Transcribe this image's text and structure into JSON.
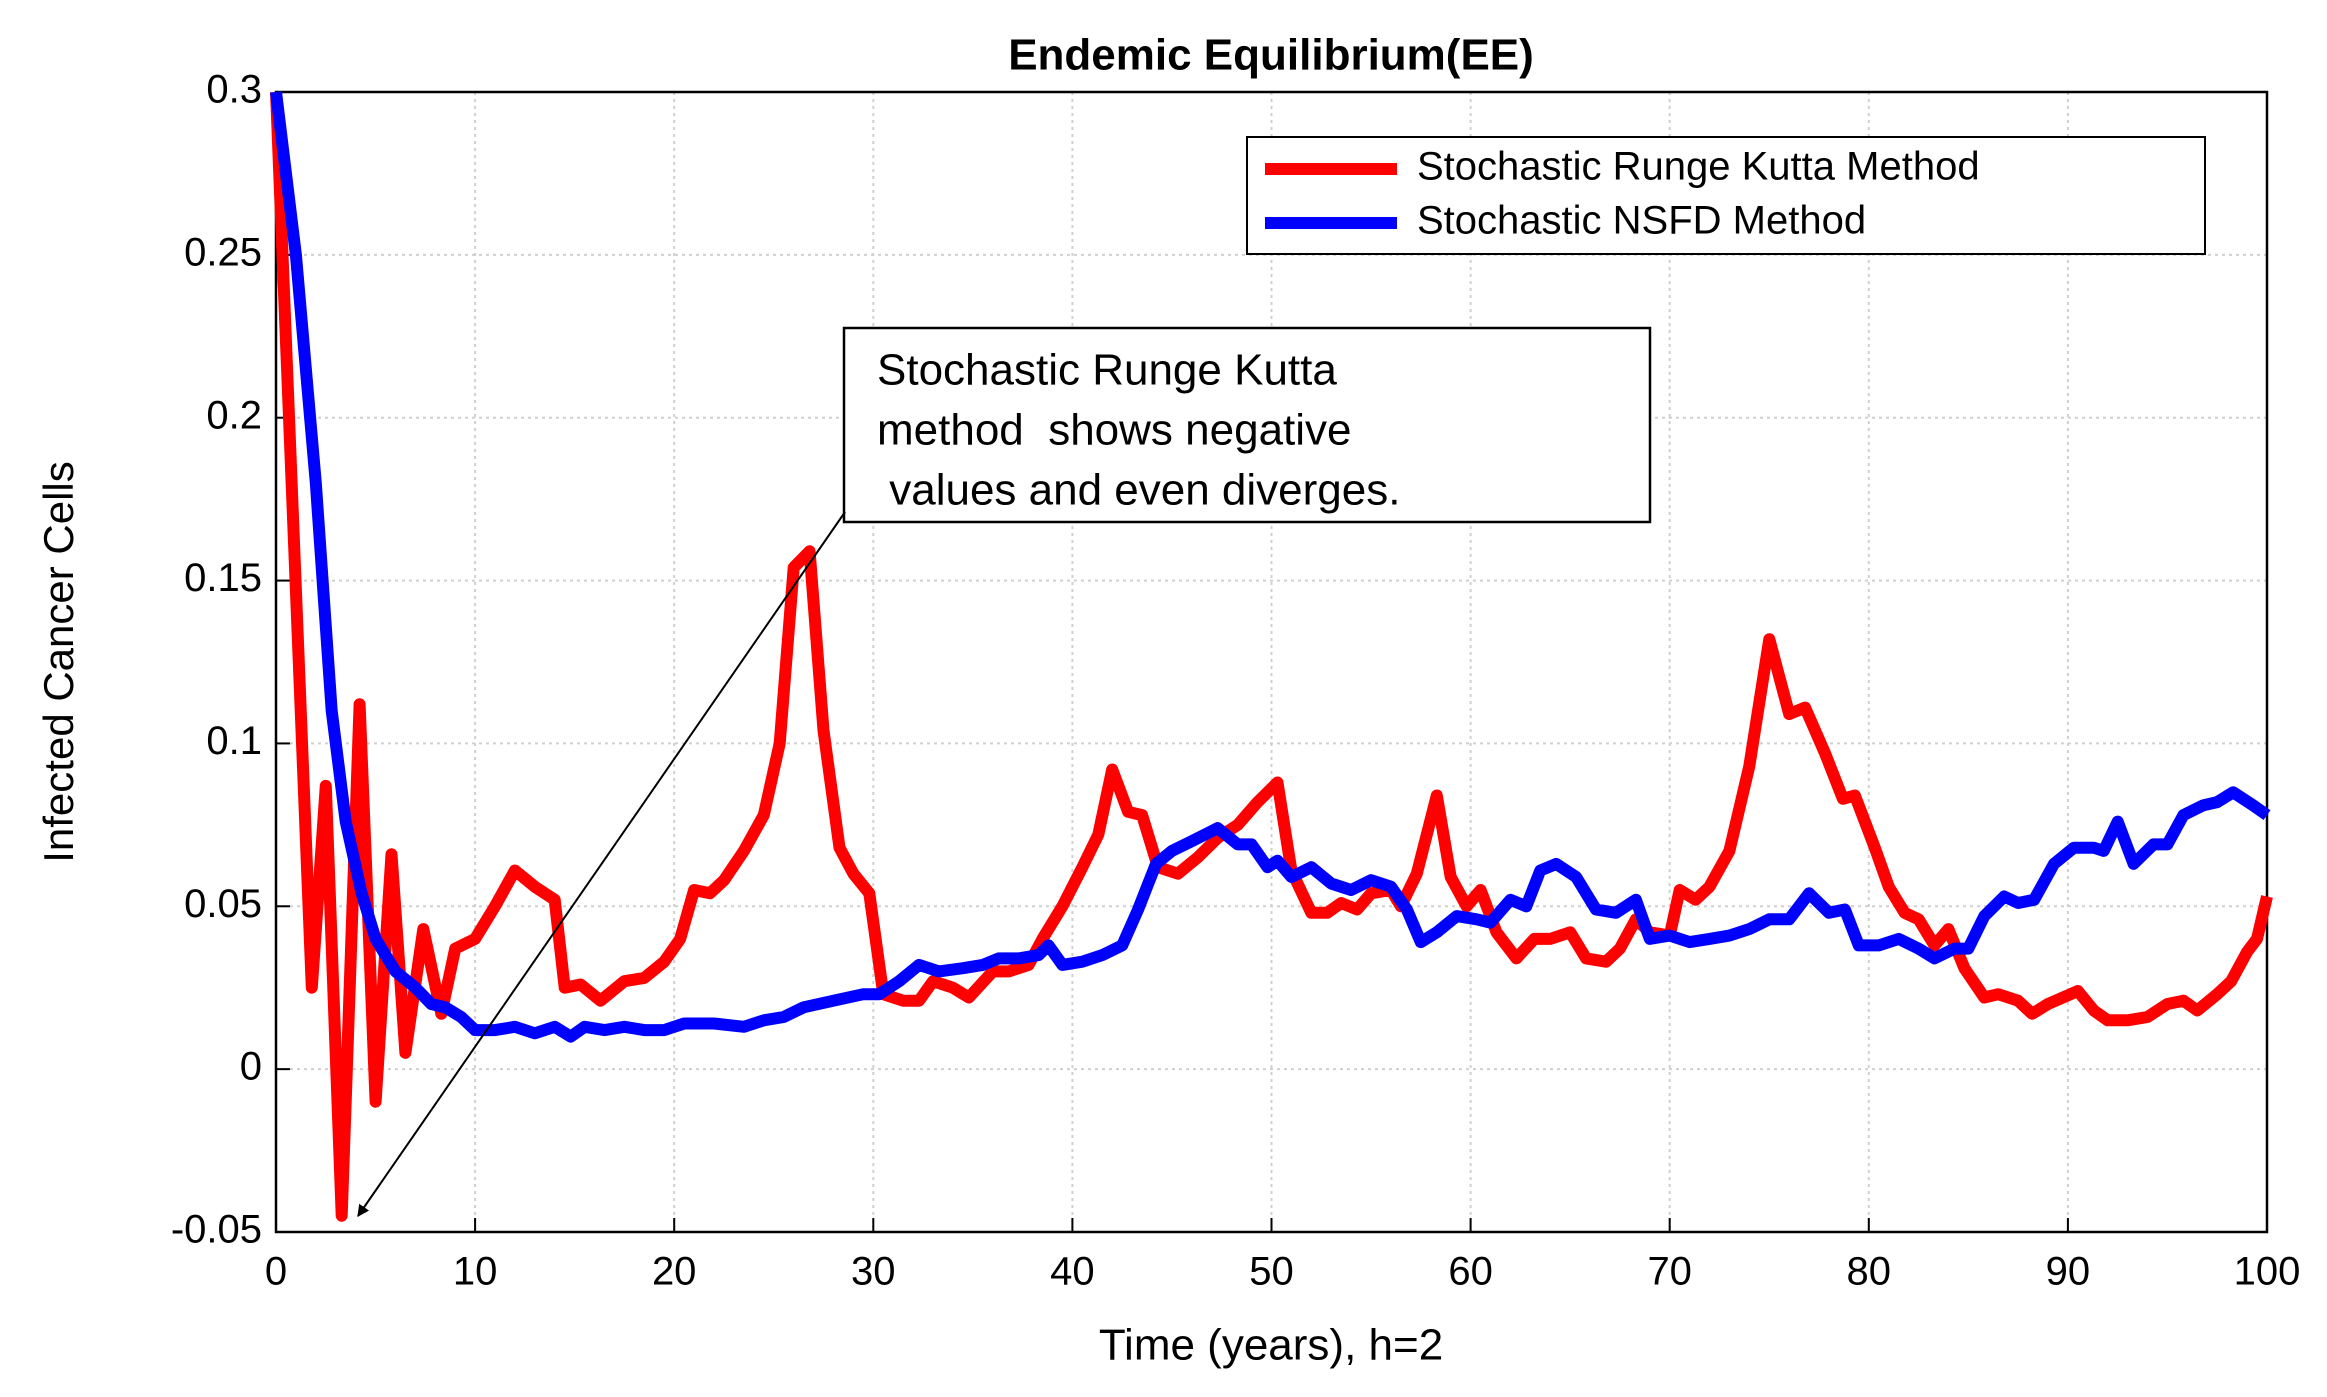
{
  "chart_data": {
    "type": "line",
    "title": "Endemic Equilibrium(EE)",
    "xlabel": "Time (years), h=2",
    "ylabel": "Infected Cancer Cells",
    "annotation": [
      "Stochastic Runge Kutta",
      "method  shows negative",
      " values and even diverges."
    ],
    "xlim": [
      0,
      100
    ],
    "ylim": [
      -0.05,
      0.3
    ],
    "xticks": [
      0,
      10,
      20,
      30,
      40,
      50,
      60,
      70,
      80,
      90,
      100
    ],
    "yticks": [
      -0.05,
      0,
      0.05,
      0.1,
      0.15,
      0.2,
      0.25,
      0.3
    ],
    "grid": true,
    "legend": "upper right",
    "series": [
      {
        "name": "Stochastic Runge Kutta Method",
        "color": "#ff0000",
        "x": [
          0,
          1.8,
          2.5,
          3.3,
          4.2,
          5,
          5.8,
          6.5,
          7.4,
          8.3,
          9,
          10,
          11,
          12,
          13,
          14,
          14.5,
          15.3,
          16.3,
          17.5,
          18.5,
          19.5,
          20.3,
          21,
          21.8,
          22.5,
          23.5,
          24.5,
          25.3,
          26,
          26.8,
          27.5,
          28.3,
          29,
          29.8,
          30.5,
          31.5,
          32.3,
          33,
          34,
          34.8,
          36,
          36.8,
          37.8,
          38.5,
          39.5,
          40.5,
          41.3,
          42,
          42.8,
          43.5,
          44.3,
          45.3,
          46.3,
          47.3,
          48.3,
          49.3,
          50.3,
          51,
          52,
          52.8,
          53.5,
          54.3,
          55,
          56,
          56.5,
          57.3,
          58.3,
          59,
          59.8,
          60.5,
          61.3,
          62.3,
          63.2,
          64,
          65,
          65.8,
          66.8,
          67.5,
          68.3,
          69,
          70,
          70.5,
          71.3,
          72,
          73,
          74,
          75,
          76,
          76.8,
          77.8,
          78.7,
          79.3,
          80.3,
          81,
          81.8,
          82.5,
          83.3,
          84,
          84.8,
          85.8,
          86.5,
          87.5,
          88.2,
          89,
          90.5,
          91.3,
          92,
          93,
          94,
          95,
          95.8,
          96.5,
          97.5,
          98.2,
          99,
          99.5,
          100
        ],
        "values": [
          0.3,
          0.025,
          0.087,
          -0.045,
          0.112,
          -0.01,
          0.066,
          0.005,
          0.043,
          0.017,
          0.037,
          0.04,
          0.05,
          0.061,
          0.056,
          0.052,
          0.025,
          0.026,
          0.021,
          0.027,
          0.028,
          0.033,
          0.04,
          0.055,
          0.054,
          0.058,
          0.067,
          0.078,
          0.1,
          0.154,
          0.159,
          0.104,
          0.068,
          0.06,
          0.054,
          0.023,
          0.021,
          0.021,
          0.027,
          0.025,
          0.022,
          0.03,
          0.03,
          0.032,
          0.04,
          0.05,
          0.062,
          0.072,
          0.092,
          0.079,
          0.078,
          0.062,
          0.06,
          0.065,
          0.071,
          0.075,
          0.082,
          0.088,
          0.061,
          0.048,
          0.048,
          0.051,
          0.049,
          0.054,
          0.055,
          0.05,
          0.06,
          0.084,
          0.059,
          0.05,
          0.055,
          0.042,
          0.034,
          0.04,
          0.04,
          0.042,
          0.034,
          0.033,
          0.037,
          0.046,
          0.042,
          0.041,
          0.055,
          0.052,
          0.056,
          0.067,
          0.093,
          0.132,
          0.109,
          0.111,
          0.097,
          0.083,
          0.084,
          0.068,
          0.056,
          0.048,
          0.046,
          0.038,
          0.043,
          0.031,
          0.022,
          0.023,
          0.021,
          0.017,
          0.02,
          0.024,
          0.018,
          0.015,
          0.015,
          0.016,
          0.02,
          0.021,
          0.018,
          0.023,
          0.027,
          0.036,
          0.04,
          0.053
        ]
      },
      {
        "name": "Stochastic NSFD Method",
        "color": "#0000ff",
        "x": [
          0,
          1,
          2,
          2.8,
          3.5,
          4.3,
          5,
          6,
          7,
          7.8,
          8.5,
          9.3,
          10,
          11,
          12,
          13,
          14,
          14.8,
          15.5,
          16.5,
          17.5,
          18.5,
          19.5,
          20.5,
          22,
          23.5,
          24.5,
          25.5,
          26.5,
          28,
          29.5,
          30.3,
          31.3,
          32.3,
          33.3,
          34.5,
          35.5,
          36.3,
          37.3,
          38.3,
          38.8,
          39.5,
          40.5,
          41.5,
          42.5,
          43.3,
          44.2,
          45,
          46,
          47.3,
          48.3,
          49,
          49.8,
          50.3,
          51,
          52,
          53,
          54,
          55,
          56,
          56.8,
          57.5,
          58.3,
          59.3,
          60.3,
          61,
          62,
          62.8,
          63.5,
          64.3,
          65.3,
          66.3,
          67.3,
          68.3,
          69,
          70,
          71,
          72,
          73,
          74,
          75,
          76,
          77,
          78,
          78.8,
          79.5,
          80.5,
          81.5,
          82.5,
          83.3,
          84.3,
          85,
          85.8,
          86.8,
          87.5,
          88.3,
          89.3,
          90.3,
          91.3,
          91.8,
          92.5,
          93.3,
          94.3,
          95,
          95.8,
          96.8,
          97.5,
          98.3,
          99.3,
          100
        ],
        "values": [
          0.3,
          0.25,
          0.18,
          0.11,
          0.076,
          0.054,
          0.04,
          0.03,
          0.025,
          0.02,
          0.019,
          0.016,
          0.012,
          0.012,
          0.013,
          0.011,
          0.013,
          0.01,
          0.013,
          0.012,
          0.013,
          0.012,
          0.012,
          0.014,
          0.014,
          0.013,
          0.015,
          0.016,
          0.019,
          0.021,
          0.023,
          0.023,
          0.027,
          0.032,
          0.03,
          0.031,
          0.032,
          0.034,
          0.034,
          0.035,
          0.038,
          0.032,
          0.033,
          0.035,
          0.038,
          0.049,
          0.063,
          0.067,
          0.07,
          0.074,
          0.069,
          0.069,
          0.062,
          0.064,
          0.059,
          0.062,
          0.057,
          0.055,
          0.058,
          0.056,
          0.049,
          0.039,
          0.042,
          0.047,
          0.046,
          0.045,
          0.052,
          0.05,
          0.061,
          0.063,
          0.059,
          0.049,
          0.048,
          0.052,
          0.04,
          0.041,
          0.039,
          0.04,
          0.041,
          0.043,
          0.046,
          0.046,
          0.054,
          0.048,
          0.049,
          0.038,
          0.038,
          0.04,
          0.037,
          0.034,
          0.037,
          0.037,
          0.047,
          0.053,
          0.051,
          0.052,
          0.063,
          0.068,
          0.068,
          0.067,
          0.076,
          0.063,
          0.069,
          0.069,
          0.078,
          0.081,
          0.082,
          0.085,
          0.081,
          0.078
        ]
      }
    ]
  }
}
